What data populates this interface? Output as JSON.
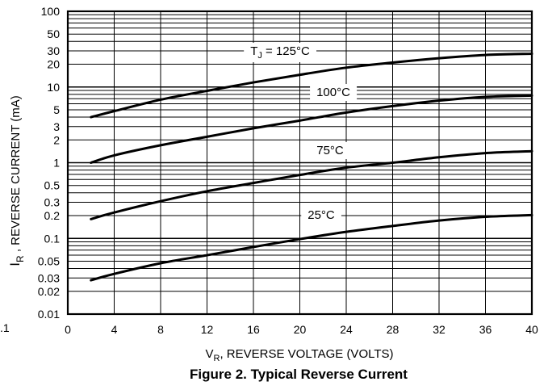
{
  "chart_data": {
    "type": "line",
    "title": "Figure 2. Typical Reverse Current",
    "xlabel": {
      "main": "V",
      "sub": "R",
      "rest": ", REVERSE VOLTAGE (VOLTS)"
    },
    "ylabel": {
      "main": "I",
      "sub": "R",
      "rest": " , REVERSE CURRENT (mA)"
    },
    "xlim": [
      0,
      40
    ],
    "ylim": [
      0.01,
      100
    ],
    "yscale": "log",
    "grid": true,
    "x_ticks": [
      "0",
      "4",
      "8",
      "12",
      "16",
      "20",
      "24",
      "28",
      "32",
      "36",
      "40"
    ],
    "y_ticks": [
      {
        "label": "100",
        "value": 100
      },
      {
        "label": "50",
        "value": 50
      },
      {
        "label": "30",
        "value": 30
      },
      {
        "label": "20",
        "value": 20
      },
      {
        "label": "10",
        "value": 10
      },
      {
        "label": "5",
        "value": 5
      },
      {
        "label": "3",
        "value": 3
      },
      {
        "label": "2",
        "value": 2
      },
      {
        "label": "1",
        "value": 1
      },
      {
        "label": "0.5",
        "value": 0.5
      },
      {
        "label": "0.3",
        "value": 0.3
      },
      {
        "label": "0.2",
        "value": 0.2
      },
      {
        "label": "0.1",
        "value": 0.1
      },
      {
        "label": "0.05",
        "value": 0.05
      },
      {
        "label": "0.03",
        "value": 0.03
      },
      {
        "label": "0.02",
        "value": 0.02
      },
      {
        "label": "0.01",
        "value": 0.01
      }
    ],
    "stray_label": ".1",
    "series": [
      {
        "name": "TJ = 125°C",
        "label_main": "T",
        "label_sub": "J",
        "label_rest": " = 125°C",
        "x": [
          2,
          4,
          8,
          12,
          16,
          20,
          24,
          28,
          32,
          36,
          40
        ],
        "values": [
          4.0,
          4.8,
          6.8,
          8.9,
          11.5,
          14.5,
          18.0,
          21.0,
          24.0,
          26.5,
          27.5
        ]
      },
      {
        "name": "100°C",
        "label_main": "100°C",
        "label_sub": "",
        "label_rest": "",
        "x": [
          2,
          4,
          8,
          12,
          16,
          20,
          24,
          28,
          32,
          36,
          40
        ],
        "values": [
          1.0,
          1.25,
          1.7,
          2.2,
          2.85,
          3.6,
          4.6,
          5.6,
          6.6,
          7.4,
          7.7
        ]
      },
      {
        "name": "75°C",
        "label_main": "75°C",
        "label_sub": "",
        "label_rest": "",
        "x": [
          2,
          4,
          8,
          12,
          16,
          20,
          24,
          28,
          32,
          36,
          40
        ],
        "values": [
          0.18,
          0.22,
          0.31,
          0.42,
          0.54,
          0.69,
          0.86,
          1.0,
          1.18,
          1.34,
          1.42
        ]
      },
      {
        "name": "25°C",
        "label_main": "25°C",
        "label_sub": "",
        "label_rest": "",
        "x": [
          2,
          4,
          8,
          12,
          16,
          20,
          24,
          28,
          32,
          36,
          40
        ],
        "values": [
          0.028,
          0.034,
          0.047,
          0.06,
          0.077,
          0.098,
          0.122,
          0.146,
          0.172,
          0.193,
          0.203
        ]
      }
    ]
  }
}
